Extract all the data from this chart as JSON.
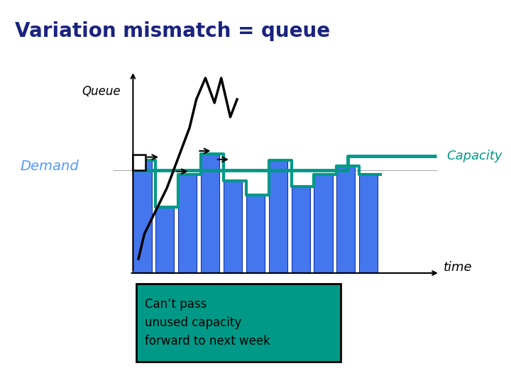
{
  "title": "Variation mismatch = queue",
  "title_color": "#1a237e",
  "title_fontsize": 20,
  "bg_color": "#ffffff",
  "demand_label": "Demand",
  "capacity_label": "Capacity",
  "queue_label": "Queue",
  "time_label": "time",
  "label_color_blue": "#5599ff",
  "label_color_teal": "#009988",
  "bar_color": "#4477ee",
  "bar_edge_color": "#1133aa",
  "capacity_line_color": "#009988",
  "demand_line_color": "#009988",
  "box_color": "#009988",
  "box_edge_color": "#000000",
  "box_text": "Can’t pass\nunused capacity\nforward to next week",
  "box_text_color": "#000000",
  "bar_heights": [
    5.5,
    3.2,
    4.8,
    5.8,
    4.5,
    3.8,
    5.5,
    4.2,
    4.8,
    5.2,
    4.8
  ],
  "n_bars": 11
}
